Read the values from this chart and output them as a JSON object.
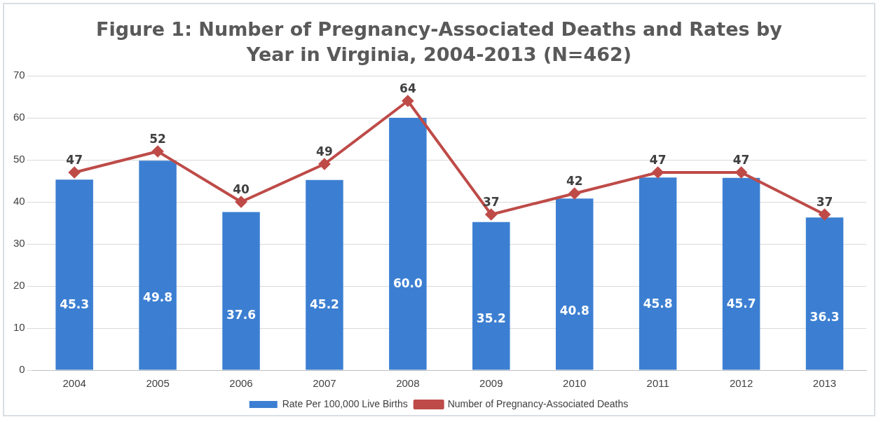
{
  "chart_data": {
    "type": "bar",
    "title": "Figure 1: Number of Pregnancy-Associated Deaths and Rates by Year in Virginia, 2004-2013 (N=462)",
    "categories": [
      "2004",
      "2005",
      "2006",
      "2007",
      "2008",
      "2009",
      "2010",
      "2011",
      "2012",
      "2013"
    ],
    "series": [
      {
        "name": "Rate Per 100,000 Live Births",
        "color": "#3c7fd2",
        "values": [
          45.3,
          49.8,
          37.6,
          45.2,
          60.0,
          35.2,
          40.8,
          45.8,
          45.7,
          36.3
        ],
        "value_labels": [
          "45.3",
          "49.8",
          "37.6",
          "45.2",
          "60.0",
          "35.2",
          "40.8",
          "45.8",
          "45.7",
          "36.3"
        ]
      },
      {
        "name": "Number of Pregnancy-Associated Deaths",
        "type": "line",
        "color": "#be4b48",
        "values": [
          47,
          52,
          40,
          49,
          64,
          37,
          42,
          47,
          47,
          37
        ],
        "value_labels": [
          "47",
          "52",
          "40",
          "49",
          "64",
          "37",
          "42",
          "47",
          "47",
          "37"
        ]
      }
    ],
    "ylim": [
      0,
      70
    ],
    "yticks": [
      0,
      10,
      20,
      30,
      40,
      50,
      60,
      70
    ],
    "grid": "y",
    "legend": "bottom",
    "marker": "diamond",
    "line_style": "solid"
  }
}
